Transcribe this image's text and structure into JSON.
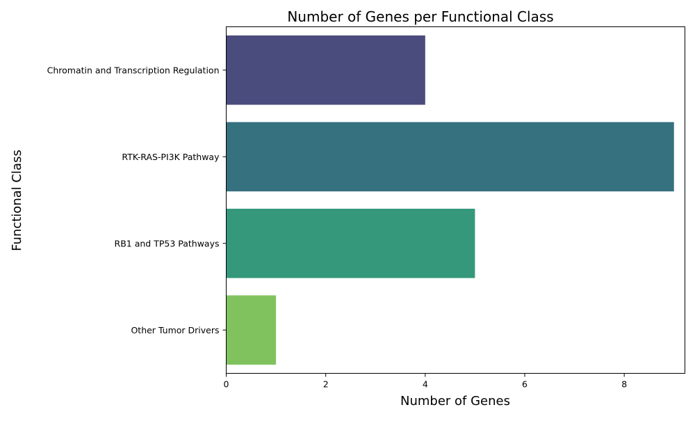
{
  "chart_data": {
    "type": "bar",
    "orientation": "horizontal",
    "title": "Number of Genes per Functional Class",
    "xlabel": "Number of Genes",
    "ylabel": "Functional Class",
    "categories": [
      "Chromatin and Transcription Regulation",
      "RTK-RAS-PI3K Pathway",
      "RB1 and TP53 Pathways",
      "Other Tumor Drivers"
    ],
    "values": [
      4,
      9,
      5,
      1
    ],
    "colors": [
      "#4a4c7e",
      "#367180",
      "#35987b",
      "#80c35e"
    ],
    "xlim": [
      0,
      9.22
    ],
    "xticks": [
      0,
      2,
      4,
      6,
      8
    ],
    "grid": false,
    "legend": "none"
  }
}
